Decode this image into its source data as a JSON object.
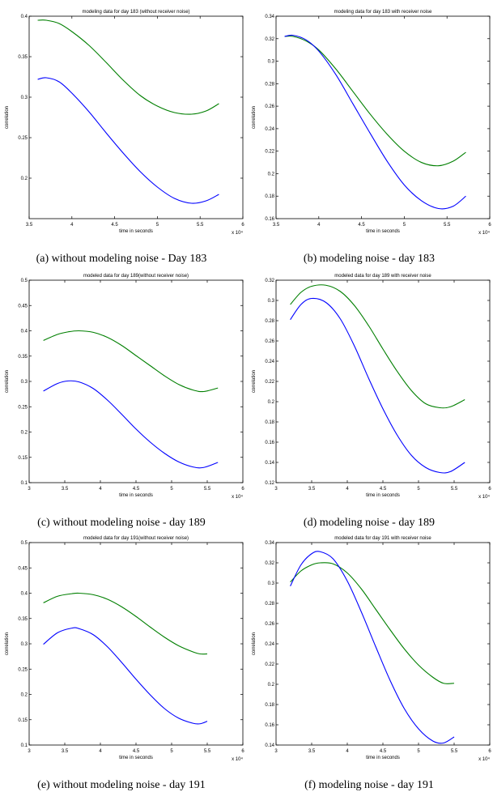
{
  "captions": [
    "(a) without modeling noise - Day 183",
    "(b) modeling noise - day 183",
    "(c) without modeling noise - day 189",
    "(d) modeling noise - day 189",
    "(e) without modeling noise - day 191",
    "(f) modeling noise - day 191"
  ],
  "chart_data": [
    {
      "type": "line",
      "title": "modeling data for day 183 (without receiver noise)",
      "xlabel": "time in seconds",
      "ylabel": "correlation",
      "x_multiplier": "x 10⁴",
      "xlim": [
        3.5,
        6
      ],
      "ylim": [
        0.15,
        0.4
      ],
      "xticks": [
        "3.5",
        "4",
        "4.5",
        "5",
        "5.5",
        "6"
      ],
      "yticks": [
        "0.2",
        "0.25",
        "0.3",
        "0.35",
        "0.4"
      ],
      "x": [
        3.6,
        3.7,
        3.85,
        4.0,
        4.2,
        4.4,
        4.6,
        4.8,
        5.0,
        5.2,
        5.4,
        5.57,
        5.72
      ],
      "series": [
        {
          "color": "#007f00",
          "values": [
            0.395,
            0.395,
            0.391,
            0.381,
            0.364,
            0.343,
            0.321,
            0.302,
            0.289,
            0.281,
            0.279,
            0.283,
            0.292
          ]
        },
        {
          "color": "#0000ff",
          "values": [
            0.322,
            0.324,
            0.319,
            0.305,
            0.282,
            0.256,
            0.231,
            0.208,
            0.189,
            0.175,
            0.169,
            0.172,
            0.18
          ]
        }
      ]
    },
    {
      "type": "line",
      "title": "modeling data for day 183 with receiver noise",
      "xlabel": "time in seconds",
      "ylabel": "correlation",
      "x_multiplier": "x 10⁴",
      "xlim": [
        3.5,
        6
      ],
      "ylim": [
        0.16,
        0.34
      ],
      "xticks": [
        "3.5",
        "4",
        "4.5",
        "5",
        "5.5",
        "6"
      ],
      "yticks": [
        "0.16",
        "0.18",
        "0.2",
        "0.22",
        "0.24",
        "0.26",
        "0.28",
        "0.3",
        "0.32",
        "0.34"
      ],
      "x": [
        3.6,
        3.7,
        3.85,
        4.0,
        4.2,
        4.4,
        4.6,
        4.8,
        5.0,
        5.2,
        5.4,
        5.57,
        5.72
      ],
      "series": [
        {
          "color": "#007f00",
          "values": [
            0.322,
            0.322,
            0.318,
            0.31,
            0.293,
            0.273,
            0.253,
            0.235,
            0.22,
            0.21,
            0.207,
            0.211,
            0.219
          ]
        },
        {
          "color": "#0000ff",
          "values": [
            0.322,
            0.323,
            0.319,
            0.309,
            0.288,
            0.262,
            0.236,
            0.211,
            0.19,
            0.176,
            0.169,
            0.171,
            0.18
          ]
        }
      ]
    },
    {
      "type": "line",
      "title": "modeled data for day 189(without receiver noise)",
      "xlabel": "time in seconds",
      "ylabel": "correlation",
      "x_multiplier": "x 10⁴",
      "xlim": [
        3,
        6
      ],
      "ylim": [
        0.1,
        0.5
      ],
      "xticks": [
        "3",
        "3.5",
        "4",
        "4.5",
        "5",
        "5.5",
        "6"
      ],
      "yticks": [
        "0.1",
        "0.15",
        "0.2",
        "0.25",
        "0.3",
        "0.35",
        "0.4",
        "0.45",
        "0.5"
      ],
      "x": [
        3.2,
        3.4,
        3.55,
        3.7,
        3.9,
        4.1,
        4.3,
        4.5,
        4.7,
        4.9,
        5.1,
        5.3,
        5.45,
        5.65
      ],
      "series": [
        {
          "color": "#007f00",
          "values": [
            0.381,
            0.393,
            0.398,
            0.4,
            0.397,
            0.387,
            0.371,
            0.351,
            0.331,
            0.311,
            0.294,
            0.283,
            0.28,
            0.287
          ]
        },
        {
          "color": "#0000ff",
          "values": [
            0.281,
            0.296,
            0.301,
            0.299,
            0.286,
            0.263,
            0.235,
            0.206,
            0.18,
            0.158,
            0.141,
            0.131,
            0.13,
            0.14
          ]
        }
      ]
    },
    {
      "type": "line",
      "title": "modeled data for day 189 with receiver noise",
      "xlabel": "time in seconds",
      "ylabel": "correlation",
      "x_multiplier": "x 10⁴",
      "xlim": [
        3,
        6
      ],
      "ylim": [
        0.12,
        0.32
      ],
      "xticks": [
        "3",
        "3.5",
        "4",
        "4.5",
        "5",
        "5.5",
        "6"
      ],
      "yticks": [
        "0.12",
        "0.14",
        "0.16",
        "0.18",
        "0.2",
        "0.22",
        "0.24",
        "0.26",
        "0.28",
        "0.3",
        "0.32"
      ],
      "x": [
        3.2,
        3.35,
        3.5,
        3.7,
        3.9,
        4.1,
        4.3,
        4.5,
        4.7,
        4.9,
        5.1,
        5.3,
        5.45,
        5.65
      ],
      "series": [
        {
          "color": "#007f00",
          "values": [
            0.296,
            0.308,
            0.314,
            0.315,
            0.309,
            0.295,
            0.275,
            0.252,
            0.23,
            0.211,
            0.198,
            0.194,
            0.195,
            0.202
          ]
        },
        {
          "color": "#0000ff",
          "values": [
            0.281,
            0.296,
            0.302,
            0.298,
            0.282,
            0.255,
            0.223,
            0.193,
            0.167,
            0.147,
            0.135,
            0.13,
            0.131,
            0.14
          ]
        }
      ]
    },
    {
      "type": "line",
      "title": "modeled data for day 191(without receiver noise)",
      "xlabel": "time in seconds",
      "ylabel": "correlation",
      "x_multiplier": "x 10⁴",
      "xlim": [
        3,
        6
      ],
      "ylim": [
        0.1,
        0.5
      ],
      "xticks": [
        "3",
        "3.5",
        "4",
        "4.5",
        "5",
        "5.5",
        "6"
      ],
      "yticks": [
        "0.1",
        "0.15",
        "0.2",
        "0.25",
        "0.3",
        "0.35",
        "0.4",
        "0.45",
        "0.5"
      ],
      "x": [
        3.2,
        3.4,
        3.6,
        3.7,
        3.9,
        4.1,
        4.3,
        4.5,
        4.7,
        4.9,
        5.1,
        5.3,
        5.4,
        5.5
      ],
      "series": [
        {
          "color": "#007f00",
          "values": [
            0.381,
            0.394,
            0.399,
            0.4,
            0.397,
            0.388,
            0.373,
            0.354,
            0.333,
            0.313,
            0.296,
            0.284,
            0.28,
            0.28
          ]
        },
        {
          "color": "#0000ff",
          "values": [
            0.299,
            0.322,
            0.331,
            0.33,
            0.318,
            0.294,
            0.263,
            0.23,
            0.199,
            0.172,
            0.153,
            0.143,
            0.142,
            0.147
          ]
        }
      ]
    },
    {
      "type": "line",
      "title": "modeled data for day 191 with receiver noise",
      "xlabel": "time in seconds",
      "ylabel": "correlation",
      "x_multiplier": "x 10⁴",
      "xlim": [
        3,
        6
      ],
      "ylim": [
        0.14,
        0.34
      ],
      "xticks": [
        "3",
        "3.5",
        "4",
        "4.5",
        "5",
        "5.5",
        "6"
      ],
      "yticks": [
        "0.14",
        "0.16",
        "0.18",
        "0.2",
        "0.22",
        "0.24",
        "0.26",
        "0.28",
        "0.3",
        "0.32",
        "0.34"
      ],
      "x": [
        3.2,
        3.35,
        3.5,
        3.62,
        3.8,
        4.0,
        4.2,
        4.4,
        4.6,
        4.8,
        5.0,
        5.2,
        5.35,
        5.5
      ],
      "series": [
        {
          "color": "#007f00",
          "values": [
            0.301,
            0.312,
            0.318,
            0.32,
            0.319,
            0.31,
            0.294,
            0.274,
            0.254,
            0.235,
            0.219,
            0.207,
            0.201,
            0.201
          ]
        },
        {
          "color": "#0000ff",
          "values": [
            0.297,
            0.318,
            0.329,
            0.331,
            0.324,
            0.302,
            0.271,
            0.237,
            0.204,
            0.176,
            0.156,
            0.144,
            0.142,
            0.148
          ]
        }
      ]
    }
  ]
}
